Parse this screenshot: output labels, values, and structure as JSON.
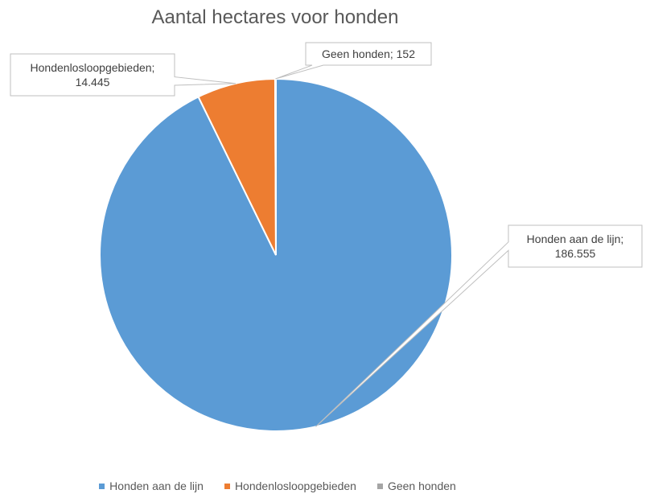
{
  "chart_data": {
    "type": "pie",
    "title": "Aantal hectares voor honden",
    "categories": [
      "Honden aan de lijn",
      "Hondenlosloopgebieden",
      "Geen honden"
    ],
    "values": [
      186555,
      14445,
      152
    ],
    "colors": [
      "#5b9bd5",
      "#ed7d31",
      "#a5a5a5"
    ],
    "data_labels": [
      [
        "Honden aan de lijn;",
        "186.555"
      ],
      [
        "Hondenlosloopgebieden;",
        "14.445"
      ],
      [
        "Geen honden;  152"
      ]
    ],
    "legend_position": "bottom"
  }
}
